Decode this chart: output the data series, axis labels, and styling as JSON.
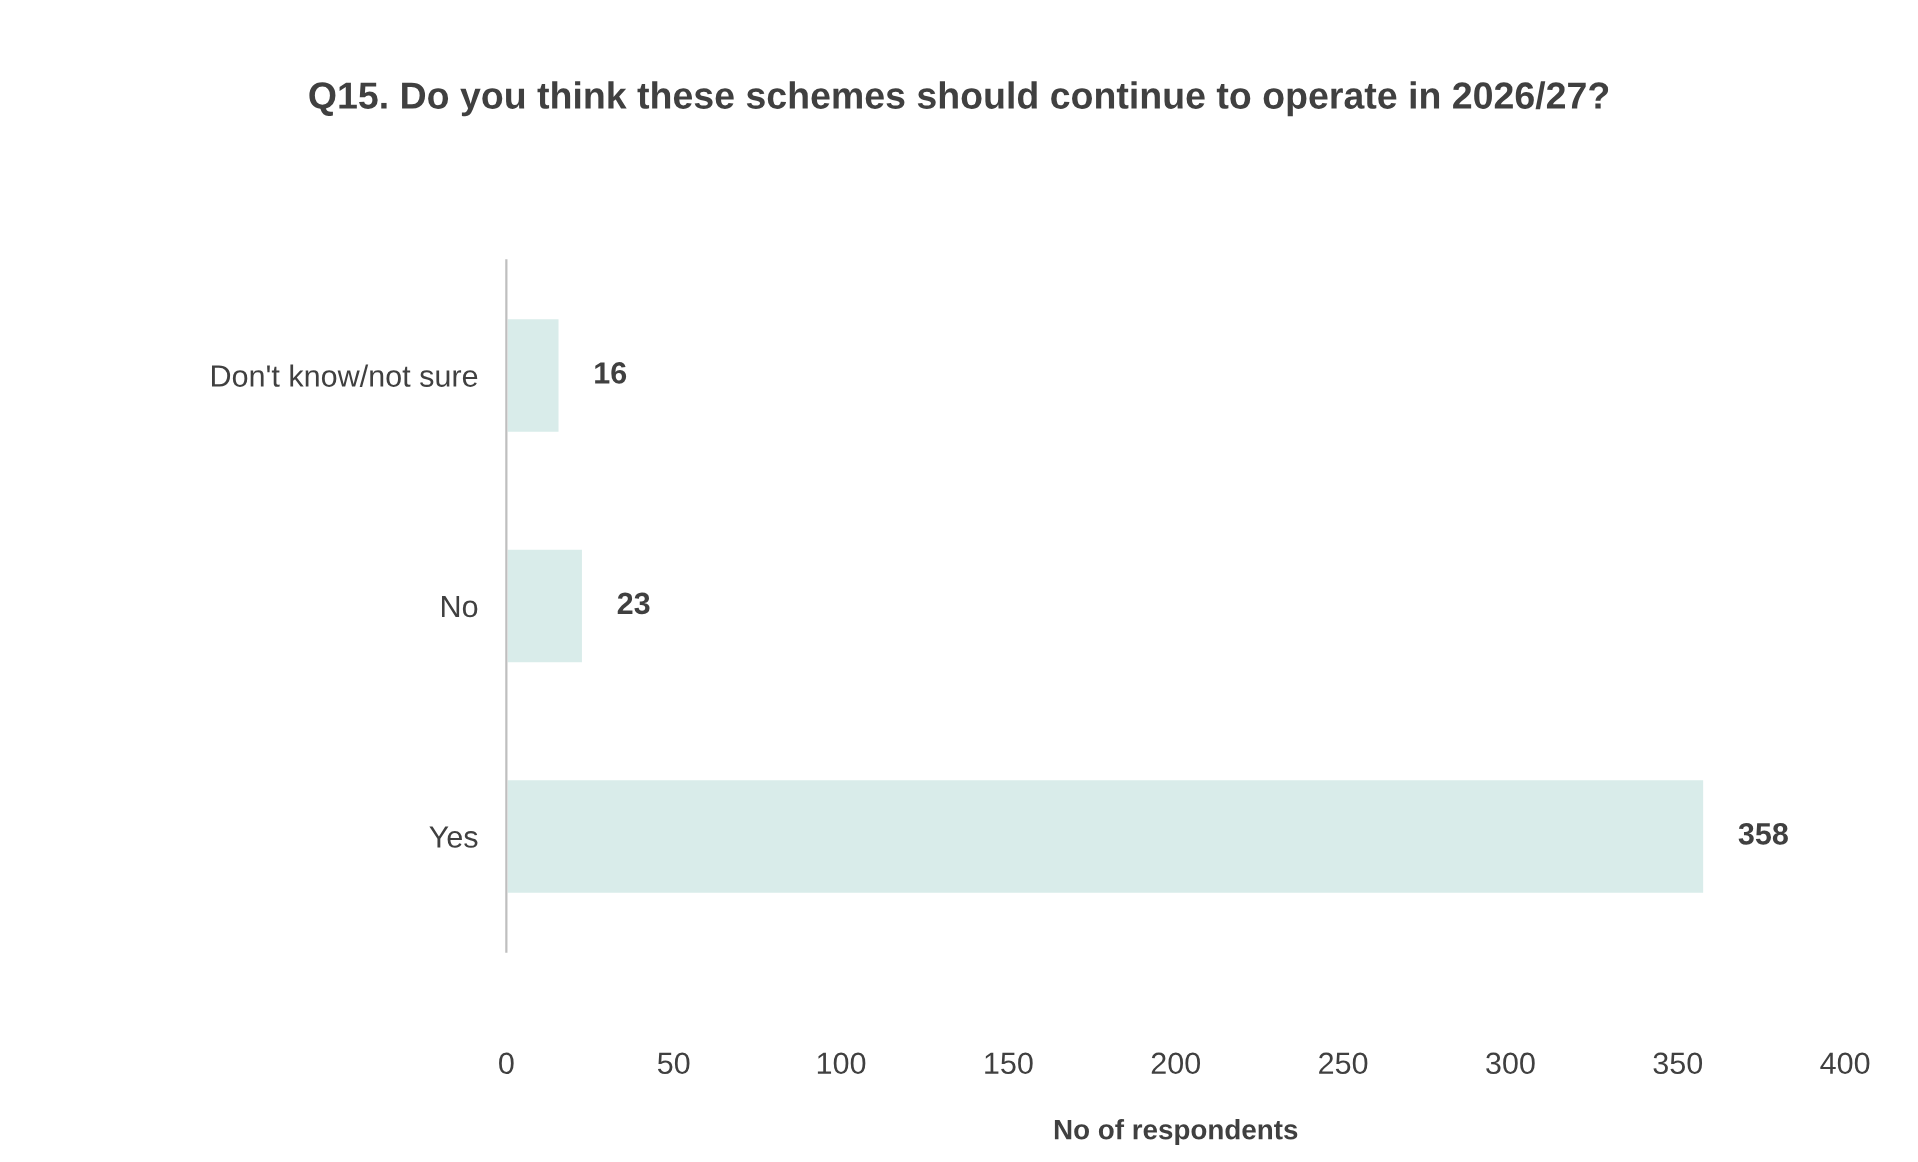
{
  "chart_data": {
    "type": "bar",
    "orientation": "horizontal",
    "title": "Q15. Do you think these schemes should continue to operate in 2026/27?",
    "xlabel": "No of respondents",
    "categories": [
      "Don't know/not sure",
      "No",
      "Yes"
    ],
    "values": [
      16,
      23,
      358
    ],
    "color": "#d9ecea",
    "xlim": [
      0,
      400
    ],
    "xticks": [
      0,
      50,
      100,
      150,
      200,
      250,
      300,
      350,
      400
    ],
    "grid": false,
    "data_labels": true
  }
}
